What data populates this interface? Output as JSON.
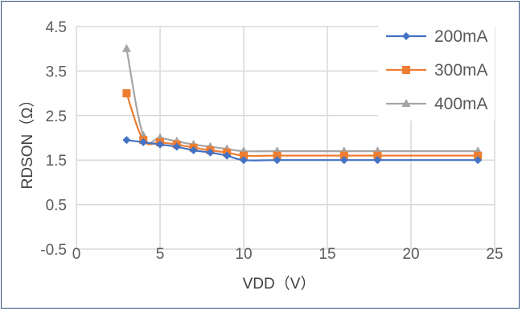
{
  "chart_data": {
    "type": "line",
    "xlabel": "VDD（V）",
    "ylabel": "RDSON（Ω）",
    "xlim": [
      0,
      25
    ],
    "ylim": [
      -0.5,
      4.5
    ],
    "x_ticks": [
      "0",
      "5",
      "10",
      "15",
      "20",
      "25"
    ],
    "y_ticks": [
      "-0.5",
      "0.5",
      "1.5",
      "2.5",
      "3.5",
      "4.5"
    ],
    "grid": "vertical and horizontal major gridlines",
    "legend_position": "top-right",
    "series": [
      {
        "name": "200mA",
        "color": "#4472c4",
        "marker": "diamond",
        "x": [
          3,
          4,
          5,
          6,
          7,
          8,
          9,
          10,
          12,
          16,
          18,
          24
        ],
        "y": [
          1.95,
          1.9,
          1.85,
          1.8,
          1.72,
          1.67,
          1.6,
          1.5,
          1.5,
          1.5,
          1.5,
          1.5
        ]
      },
      {
        "name": "300mA",
        "color": "#ed7d31",
        "marker": "square",
        "x": [
          3,
          4,
          5,
          6,
          7,
          8,
          9,
          10,
          12,
          16,
          18,
          24
        ],
        "y": [
          3.0,
          1.95,
          1.9,
          1.85,
          1.78,
          1.72,
          1.67,
          1.6,
          1.6,
          1.6,
          1.6,
          1.6
        ]
      },
      {
        "name": "400mA",
        "color": "#a5a5a5",
        "marker": "triangle",
        "x": [
          3,
          4,
          5,
          6,
          7,
          8,
          9,
          10,
          12,
          16,
          18,
          24
        ],
        "y": [
          4.0,
          2.05,
          2.0,
          1.92,
          1.85,
          1.8,
          1.75,
          1.7,
          1.7,
          1.7,
          1.7,
          1.7
        ]
      }
    ]
  }
}
